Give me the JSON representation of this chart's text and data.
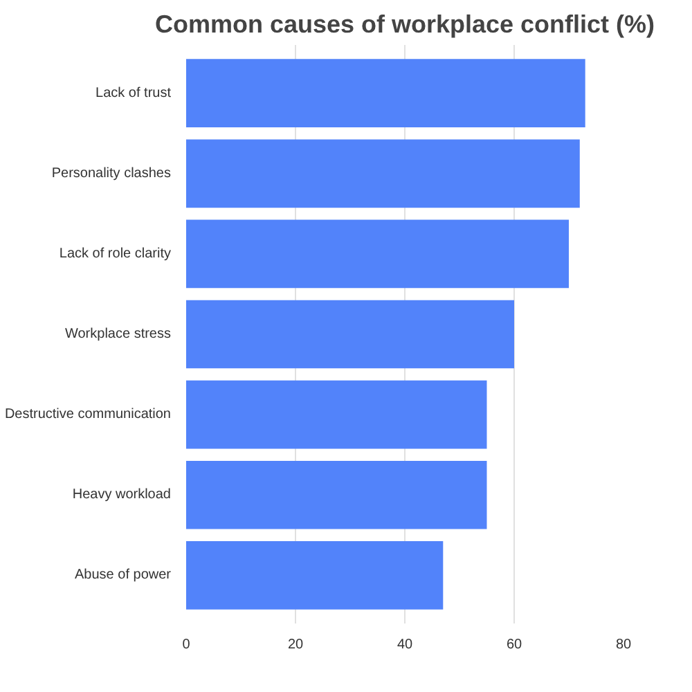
{
  "chart_data": {
    "type": "bar",
    "orientation": "horizontal",
    "title": "Common causes of workplace conflict (%)",
    "categories": [
      "Lack of trust",
      "Personality clashes",
      "Lack of role clarity",
      "Workplace stress",
      "Destructive communication",
      "Heavy workload",
      "Abuse of power"
    ],
    "values": [
      73,
      72,
      70,
      60,
      55,
      55,
      47
    ],
    "color": "#5283fa",
    "xlim": [
      0,
      80
    ],
    "xticks": [
      0,
      20,
      40,
      60,
      80
    ],
    "grid": "x"
  }
}
